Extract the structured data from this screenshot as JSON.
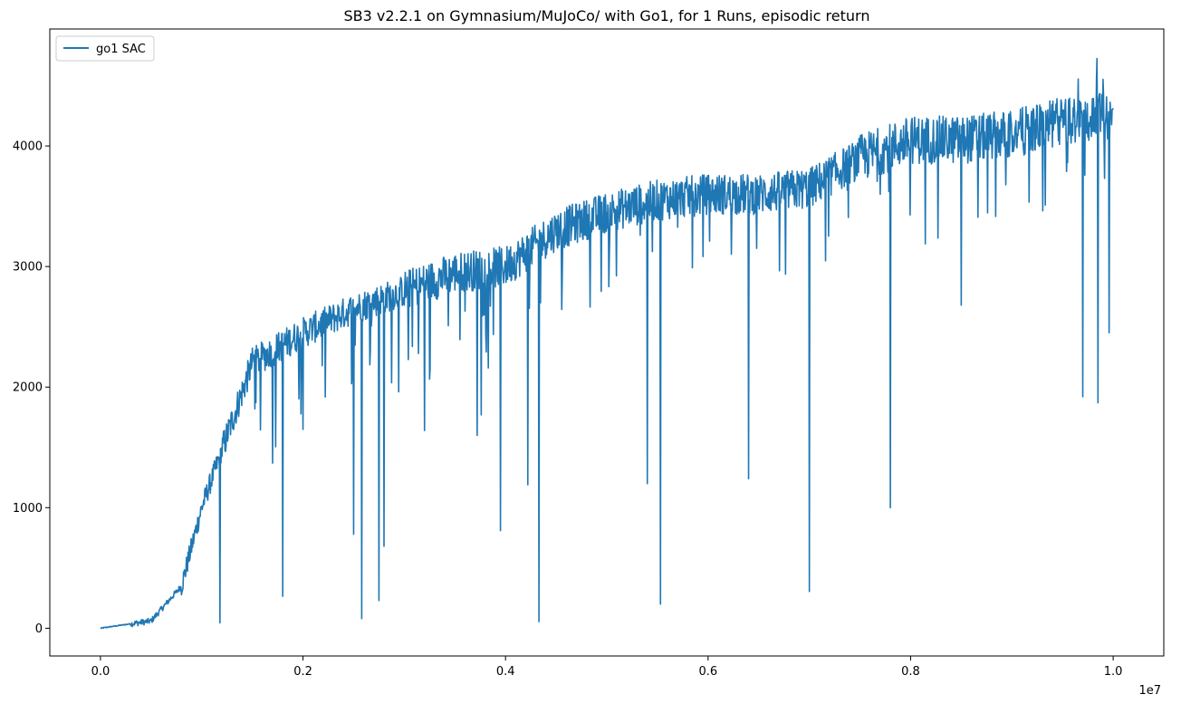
{
  "chart_data": {
    "type": "line",
    "title": "SB3 v2.2.1 on Gymnasium/MuJoCo/ with Go1, for 1 Runs, episodic return",
    "xlabel": "",
    "ylabel": "",
    "x_offset_label": "1e7",
    "xlim": [
      -0.05,
      1.05
    ],
    "ylim": [
      -230,
      4970
    ],
    "x_ticks": [
      0.0,
      0.2,
      0.4,
      0.6,
      0.8,
      1.0
    ],
    "x_tick_labels": [
      "0.0",
      "0.2",
      "0.4",
      "0.6",
      "0.8",
      "1.0"
    ],
    "y_ticks": [
      0,
      1000,
      2000,
      3000,
      4000
    ],
    "y_tick_labels": [
      "0",
      "1000",
      "2000",
      "3000",
      "4000"
    ],
    "grid": false,
    "legend": {
      "position": "top-left",
      "entries": [
        "go1 SAC"
      ]
    },
    "series": [
      {
        "name": "go1 SAC",
        "color": "#1f77b4",
        "trend": {
          "x": [
            0.0,
            0.02,
            0.05,
            0.08,
            0.1,
            0.15,
            0.2,
            0.25,
            0.3,
            0.35,
            0.4,
            0.45,
            0.5,
            0.55,
            0.6,
            0.65,
            0.7,
            0.75,
            0.8,
            0.85,
            0.9,
            0.95,
            1.0
          ],
          "y": [
            0,
            25,
            60,
            350,
            1000,
            2200,
            2450,
            2650,
            2800,
            2950,
            3000,
            3300,
            3450,
            3550,
            3600,
            3600,
            3650,
            3900,
            4050,
            4050,
            4100,
            4200,
            4250
          ]
        },
        "spikes": [
          {
            "x": 0.118,
            "y": 45
          },
          {
            "x": 0.17,
            "y": 1370
          },
          {
            "x": 0.18,
            "y": 265
          },
          {
            "x": 0.2,
            "y": 1650
          },
          {
            "x": 0.25,
            "y": 780
          },
          {
            "x": 0.258,
            "y": 80
          },
          {
            "x": 0.275,
            "y": 230
          },
          {
            "x": 0.28,
            "y": 680
          },
          {
            "x": 0.32,
            "y": 1640
          },
          {
            "x": 0.372,
            "y": 1600
          },
          {
            "x": 0.376,
            "y": 1770
          },
          {
            "x": 0.395,
            "y": 810
          },
          {
            "x": 0.422,
            "y": 1190
          },
          {
            "x": 0.433,
            "y": 55
          },
          {
            "x": 0.54,
            "y": 1200
          },
          {
            "x": 0.553,
            "y": 200
          },
          {
            "x": 0.64,
            "y": 1240
          },
          {
            "x": 0.7,
            "y": 305
          },
          {
            "x": 0.78,
            "y": 1000
          },
          {
            "x": 0.85,
            "y": 2680
          },
          {
            "x": 0.97,
            "y": 1920
          },
          {
            "x": 0.985,
            "y": 1870
          },
          {
            "x": 0.996,
            "y": 2450
          }
        ]
      }
    ]
  }
}
